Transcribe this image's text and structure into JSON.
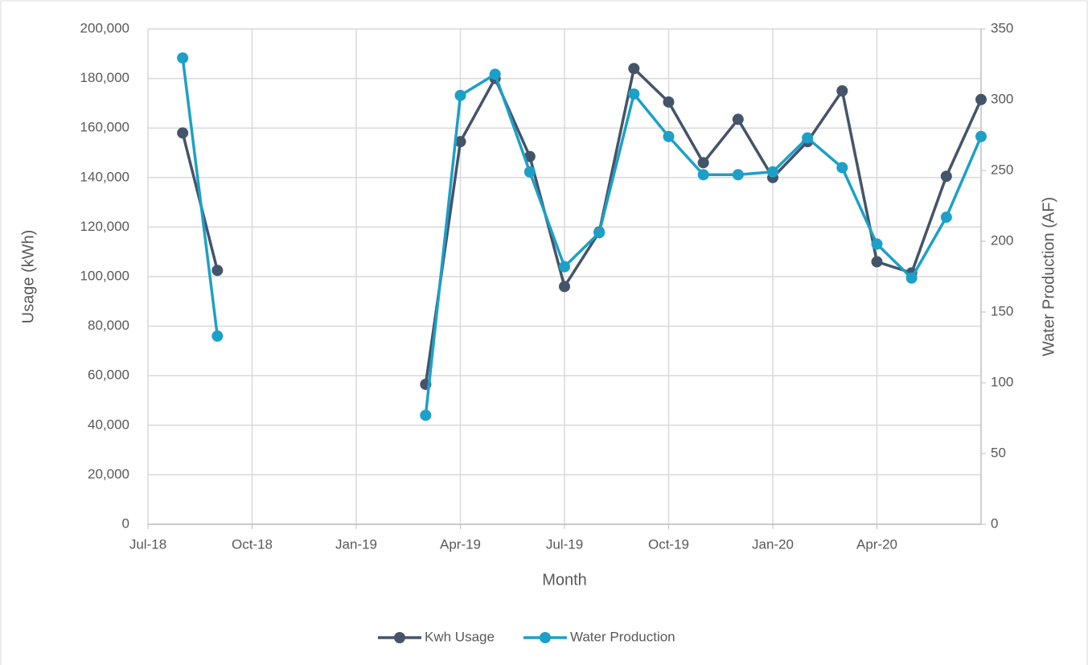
{
  "chart_data": {
    "type": "line",
    "x_label": "Month",
    "y_label": "Usage (kWh)",
    "y2_label": "Water Production (AF)",
    "x": [
      "2018-08",
      "2018-09",
      "2018-10",
      "2018-11",
      "2018-12",
      "2019-01",
      "2019-02",
      "2019-03",
      "2019-04",
      "2019-05",
      "2019-06",
      "2019-07",
      "2019-08",
      "2019-09",
      "2019-10",
      "2019-11",
      "2019-12",
      "2020-01",
      "2020-02",
      "2020-03",
      "2020-04",
      "2020-05",
      "2020-06",
      "2020-07"
    ],
    "series": [
      {
        "name": "Kwh Usage",
        "color": "#44546a",
        "axis": "y",
        "values": [
          158000,
          102500,
          null,
          null,
          null,
          null,
          null,
          56500,
          154500,
          180000,
          148500,
          96000,
          118000,
          184000,
          170500,
          146000,
          163500,
          140000,
          154500,
          175000,
          106000,
          101500,
          140500,
          171500
        ]
      },
      {
        "name": "Water Production",
        "color": "#1ca0c8",
        "axis": "y2",
        "values": [
          329.5,
          133,
          null,
          null,
          null,
          null,
          null,
          77,
          303,
          318,
          249,
          182,
          206,
          304,
          274,
          247,
          247,
          249,
          273,
          252,
          198,
          174,
          217,
          274
        ]
      }
    ],
    "xlim": [
      "2018-07",
      "2020-07"
    ],
    "xticks": [
      {
        "value": "2018-07",
        "label": "Jul-18"
      },
      {
        "value": "2018-10",
        "label": "Oct-18"
      },
      {
        "value": "2019-01",
        "label": "Jan-19"
      },
      {
        "value": "2019-04",
        "label": "Apr-19"
      },
      {
        "value": "2019-07",
        "label": "Jul-19"
      },
      {
        "value": "2019-10",
        "label": "Oct-19"
      },
      {
        "value": "2020-01",
        "label": "Jan-20"
      },
      {
        "value": "2020-04",
        "label": "Apr-20"
      }
    ],
    "ylim": [
      0,
      200000
    ],
    "yticks": [
      0,
      {
        "value": 20000,
        "label": "20,000"
      },
      {
        "value": 40000,
        "label": "40,000"
      },
      {
        "value": 60000,
        "label": "60,000"
      },
      {
        "value": 80000,
        "label": "80,000"
      },
      {
        "value": 100000,
        "label": "100,000"
      },
      {
        "value": 120000,
        "label": "120,000"
      },
      {
        "value": 140000,
        "label": "140,000"
      },
      {
        "value": 160000,
        "label": "160,000"
      },
      {
        "value": 180000,
        "label": "180,000"
      },
      {
        "value": 200000,
        "label": "200,000"
      }
    ],
    "y2lim": [
      0,
      350
    ],
    "y2ticks": [
      0,
      50,
      100,
      150,
      200,
      250,
      300,
      350
    ],
    "grid": true,
    "legend": "bottom"
  }
}
